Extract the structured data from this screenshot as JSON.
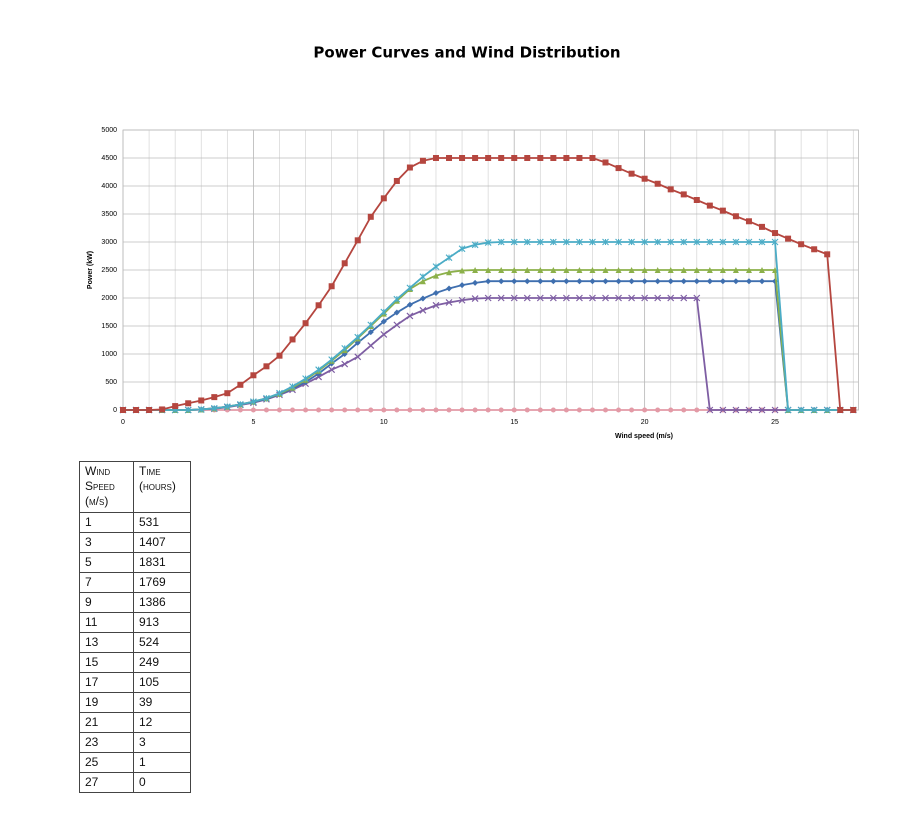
{
  "chart_data": {
    "type": "line",
    "title": "Power Curves and Wind Distribution",
    "xlabel": "Wind speed (m/s)",
    "ylabel": "Power (kW)",
    "xlim": [
      0,
      28.2
    ],
    "ylim": [
      0,
      5000
    ],
    "xticks": [
      0,
      5,
      10,
      15,
      20,
      25
    ],
    "yticks": [
      0,
      500,
      1000,
      1500,
      2000,
      2500,
      3000,
      3500,
      4000,
      4500,
      5000
    ],
    "grid": true,
    "x": [
      0,
      0.5,
      1,
      1.5,
      2,
      2.5,
      3,
      3.5,
      4,
      4.5,
      5,
      5.5,
      6,
      6.5,
      7,
      7.5,
      8,
      8.5,
      9,
      9.5,
      10,
      10.5,
      11,
      11.5,
      12,
      12.5,
      13,
      13.5,
      14,
      14.5,
      15,
      15.5,
      16,
      16.5,
      17,
      17.5,
      18,
      18.5,
      19,
      19.5,
      20,
      20.5,
      21,
      21.5,
      22,
      22.5,
      23,
      23.5,
      24,
      24.5,
      25,
      25.5,
      26,
      26.5,
      27,
      27.5,
      28
    ],
    "series": [
      {
        "color": "#b5463f",
        "marker": "square",
        "values": [
          0,
          0,
          0,
          10,
          70,
          120,
          170,
          230,
          300,
          450,
          620,
          780,
          970,
          1260,
          1550,
          1870,
          2210,
          2620,
          3030,
          3450,
          3780,
          4090,
          4330,
          4450,
          4500,
          4500,
          4500,
          4500,
          4500,
          4500,
          4500,
          4500,
          4500,
          4500,
          4500,
          4500,
          4500,
          4420,
          4320,
          4220,
          4130,
          4040,
          3940,
          3850,
          3750,
          3650,
          3560,
          3460,
          3370,
          3270,
          3160,
          3060,
          2960,
          2870,
          2780,
          0,
          0
        ]
      },
      {
        "color": "#4bacc6",
        "marker": "star",
        "values": [
          0,
          0,
          0,
          0,
          0,
          0,
          10,
          30,
          60,
          100,
          150,
          210,
          300,
          420,
          560,
          720,
          900,
          1100,
          1300,
          1520,
          1750,
          1980,
          2180,
          2380,
          2560,
          2720,
          2880,
          2950,
          2990,
          3000,
          3000,
          3000,
          3000,
          3000,
          3000,
          3000,
          3000,
          3000,
          3000,
          3000,
          3000,
          3000,
          3000,
          3000,
          3000,
          3000,
          3000,
          3000,
          3000,
          3000,
          3000,
          0,
          0,
          0,
          0,
          0,
          0
        ]
      },
      {
        "color": "#8cb04a",
        "marker": "triangle",
        "values": [
          0,
          0,
          0,
          0,
          0,
          0,
          10,
          30,
          60,
          100,
          150,
          210,
          290,
          400,
          540,
          700,
          880,
          1070,
          1280,
          1500,
          1720,
          1950,
          2160,
          2300,
          2400,
          2460,
          2490,
          2500,
          2500,
          2500,
          2500,
          2500,
          2500,
          2500,
          2500,
          2500,
          2500,
          2500,
          2500,
          2500,
          2500,
          2500,
          2500,
          2500,
          2500,
          2500,
          2500,
          2500,
          2500,
          2500,
          2500,
          0,
          0,
          0,
          0,
          0,
          0
        ]
      },
      {
        "color": "#3f6faf",
        "marker": "diamond",
        "values": [
          0,
          0,
          0,
          0,
          0,
          0,
          10,
          30,
          60,
          100,
          140,
          200,
          280,
          380,
          500,
          650,
          830,
          1000,
          1200,
          1390,
          1580,
          1740,
          1880,
          1990,
          2090,
          2170,
          2230,
          2270,
          2300,
          2300,
          2300,
          2300,
          2300,
          2300,
          2300,
          2300,
          2300,
          2300,
          2300,
          2300,
          2300,
          2300,
          2300,
          2300,
          2300,
          2300,
          2300,
          2300,
          2300,
          2300,
          2300,
          0,
          0,
          0,
          0,
          0,
          0
        ]
      },
      {
        "color": "#7e5ea3",
        "marker": "cross",
        "values": [
          0,
          0,
          0,
          0,
          0,
          0,
          10,
          20,
          50,
          90,
          130,
          190,
          270,
          360,
          470,
          590,
          720,
          820,
          950,
          1150,
          1350,
          1520,
          1680,
          1780,
          1870,
          1920,
          1960,
          1990,
          2000,
          2000,
          2000,
          2000,
          2000,
          2000,
          2000,
          2000,
          2000,
          2000,
          2000,
          2000,
          2000,
          2000,
          2000,
          2000,
          2000,
          0,
          0,
          0,
          0,
          0,
          0,
          0,
          0,
          0,
          0,
          0,
          0
        ]
      },
      {
        "color": "#e39aa6",
        "marker": "circle",
        "values": [
          0,
          0,
          0,
          0,
          0,
          0,
          0,
          0,
          0,
          0,
          0,
          0,
          0,
          0,
          0,
          0,
          0,
          0,
          0,
          0,
          0,
          0,
          0,
          0,
          0,
          0,
          0,
          0,
          0,
          0,
          0,
          0,
          0,
          0,
          0,
          0,
          0,
          0,
          0,
          0,
          0,
          0,
          0,
          0,
          0,
          0,
          0,
          0,
          0,
          0,
          0,
          0,
          0,
          0,
          0,
          0,
          0
        ]
      }
    ]
  },
  "table": {
    "headers": [
      "Wind Speed (m/s)",
      "Time (hours)"
    ],
    "rows": [
      [
        1,
        531
      ],
      [
        3,
        1407
      ],
      [
        5,
        1831
      ],
      [
        7,
        1769
      ],
      [
        9,
        1386
      ],
      [
        11,
        913
      ],
      [
        13,
        524
      ],
      [
        15,
        249
      ],
      [
        17,
        105
      ],
      [
        19,
        39
      ],
      [
        21,
        12
      ],
      [
        23,
        3
      ],
      [
        25,
        1
      ],
      [
        27,
        0
      ]
    ]
  }
}
